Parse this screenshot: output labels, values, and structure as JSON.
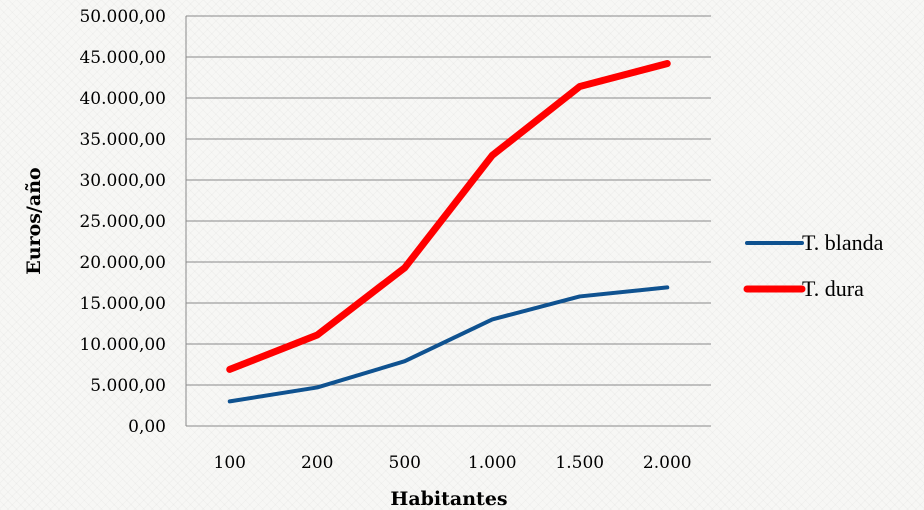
{
  "chart_data": {
    "type": "line",
    "categories": [
      "100",
      "200",
      "500",
      "1.000",
      "1.500",
      "2.000"
    ],
    "series": [
      {
        "name": "T. blanda",
        "color": "#0f5290",
        "values": [
          3000,
          4700,
          7900,
          13000,
          15800,
          16900
        ]
      },
      {
        "name": "T. dura",
        "color": "#ff0000",
        "values": [
          6900,
          11100,
          19300,
          33000,
          41400,
          44200
        ]
      }
    ],
    "title": "",
    "xlabel": "Habitantes",
    "ylabel": "Euros/año",
    "ylim": [
      0,
      50000
    ],
    "yticks": [
      "0,00",
      "5.000,00",
      "10.000,00",
      "15.000,00",
      "20.000,00",
      "25.000,00",
      "30.000,00",
      "35.000,00",
      "40.000,00",
      "45.000,00",
      "50.000,00"
    ],
    "grid": "horizontal",
    "legend": "right"
  }
}
